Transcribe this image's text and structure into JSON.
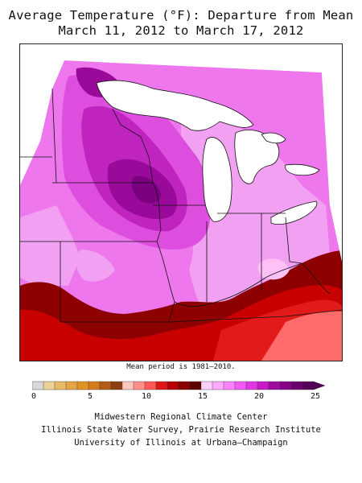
{
  "title": {
    "line1": "Average Temperature (°F): Departure from Mean",
    "line2": "March 11, 2012 to March 17, 2012"
  },
  "note": "Mean period is 1981–2010.",
  "legend": {
    "tick_labels": [
      "0",
      "5",
      "10",
      "15",
      "20",
      "25"
    ],
    "tick_values": [
      0,
      5,
      10,
      15,
      20,
      25
    ],
    "min": 0,
    "max": 25,
    "step": 1,
    "colors": [
      "#d8d8d8",
      "#ecd296",
      "#e7bb67",
      "#e4a545",
      "#e39325",
      "#d67a1e",
      "#b55a18",
      "#8e3e10",
      "#ffc6c0",
      "#ff8f88",
      "#ff5757",
      "#e01616",
      "#b40000",
      "#880000",
      "#5e0000",
      "#ffd0ff",
      "#ffa8ff",
      "#ff80ff",
      "#f35af3",
      "#e236e2",
      "#c81ac8",
      "#a00ca0",
      "#86008a",
      "#6c0070",
      "#520058"
    ]
  },
  "map_colors": {
    "magenta_light": "#f2a0f2",
    "magenta": "#ee77ee",
    "magenta_mid": "#de4ede",
    "magenta_dark": "#bf24bf",
    "purple": "#9a0a9a",
    "purple_deep": "#7a0080",
    "red_dark": "#8e0000",
    "red": "#c80000",
    "red_bright": "#e21a1a",
    "salmon": "#ff6a6a",
    "pink_pale": "#ffc0f6"
  },
  "credits": [
    "Midwestern Regional Climate Center",
    "Illinois State Water Survey, Prairie Research Institute",
    "University of Illinois at Urbana–Champaign"
  ]
}
